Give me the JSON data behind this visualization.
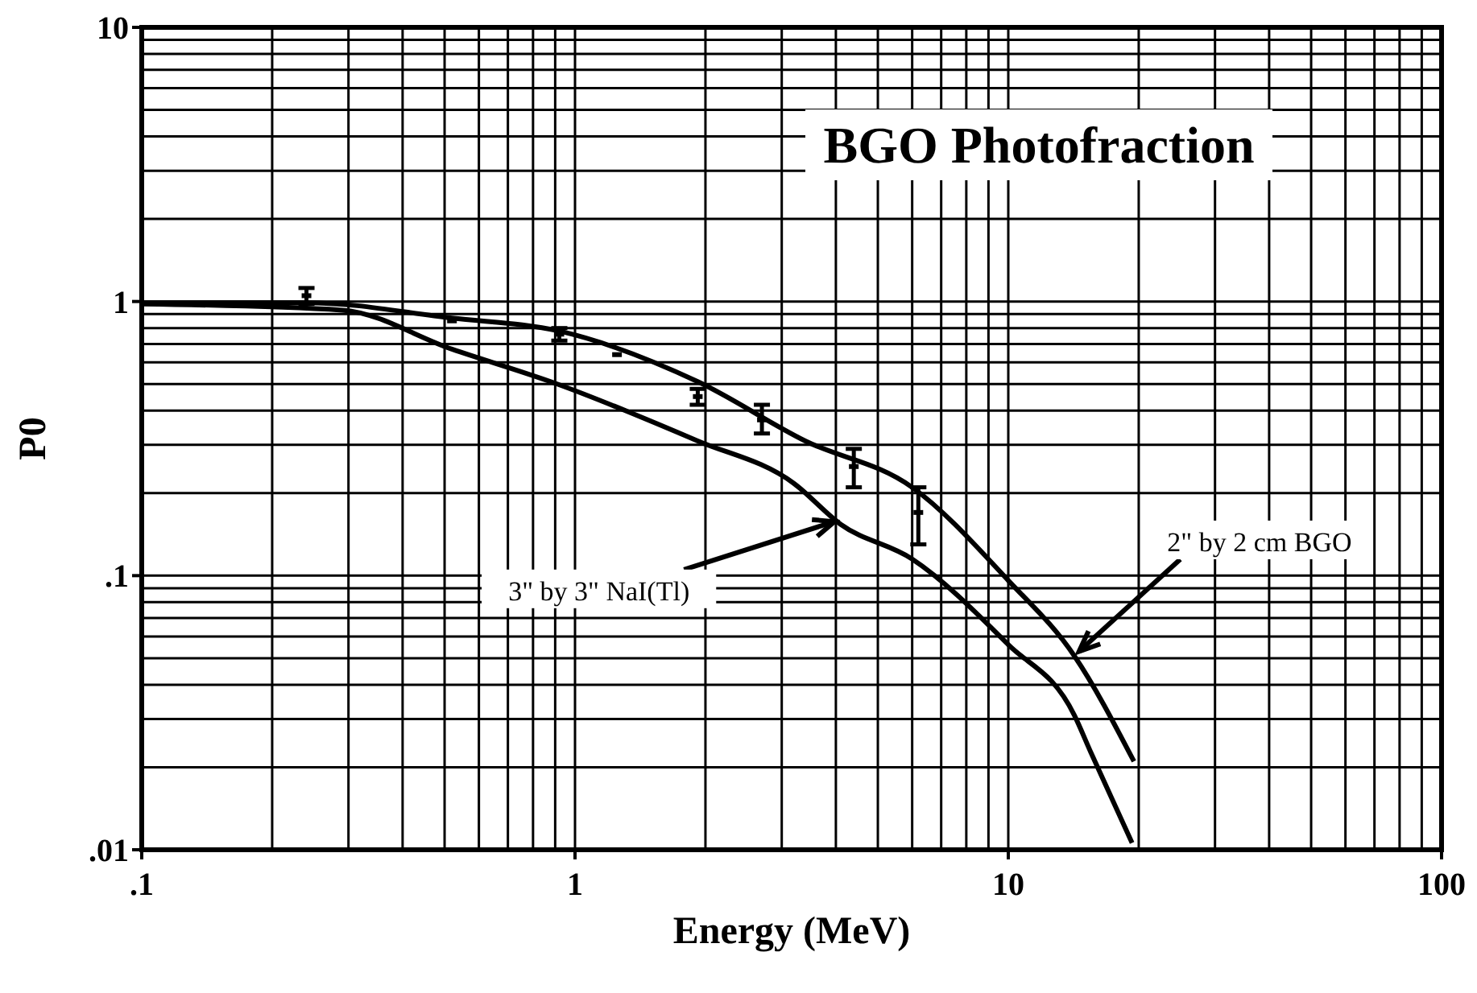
{
  "chart_data": {
    "type": "line",
    "title": "BGO Photofraction",
    "xlabel": "Energy (MeV)",
    "ylabel": "P0",
    "log": "xy",
    "grid": true,
    "line_style": "solid",
    "xlim": [
      0.1,
      100
    ],
    "xticks": [
      {
        "value": 0.1,
        "label": ".1"
      },
      1,
      10,
      100
    ],
    "ylim": [
      0.01,
      10
    ],
    "yticks": [
      {
        "value": 0.01,
        "label": ".01"
      },
      {
        "value": 0.1,
        "label": ".1"
      },
      1,
      10
    ],
    "series": [
      {
        "color": "#000000",
        "x": [
          0.1,
          0.24,
          0.52,
          0.92,
          1.92,
          3.4,
          6,
          10,
          14.2,
          19.5
        ],
        "values": [
          0.99,
          0.99,
          0.87,
          0.78,
          0.51,
          0.31,
          0.21,
          0.096,
          0.051,
          0.021
        ]
      },
      {
        "color": "#000000",
        "x": [
          0.1,
          0.29,
          0.52,
          0.91,
          1.92,
          3.2,
          4.1,
          6,
          10,
          14.2,
          15.5,
          19.3
        ],
        "values": [
          0.98,
          0.93,
          0.67,
          0.5,
          0.31,
          0.217,
          0.154,
          0.115,
          0.056,
          0.031,
          0.0227,
          0.0106
        ]
      },
      {
        "type": "scatter",
        "color": "#000000",
        "marker": "square",
        "x": [
          0.24,
          0.52,
          0.92,
          1.25,
          1.92,
          2.7,
          4.4,
          6.2
        ],
        "values": [
          1.05,
          0.85,
          0.76,
          0.64,
          0.45,
          0.37,
          0.25,
          0.17
        ],
        "errors": [
          [
            0.98,
            1.12
          ],
          null,
          [
            0.72,
            0.8
          ],
          null,
          [
            0.42,
            0.48
          ],
          [
            0.33,
            0.42
          ],
          [
            0.21,
            0.29
          ],
          [
            0.13,
            0.21
          ]
        ]
      }
    ],
    "annotations": [
      {
        "text": "3\" by 3\" NaI(Tl)",
        "x": 4.1,
        "y": 0.16
      },
      {
        "text": "2\" by 2 cm BGO",
        "x": 14.2,
        "y": 0.051
      }
    ]
  }
}
